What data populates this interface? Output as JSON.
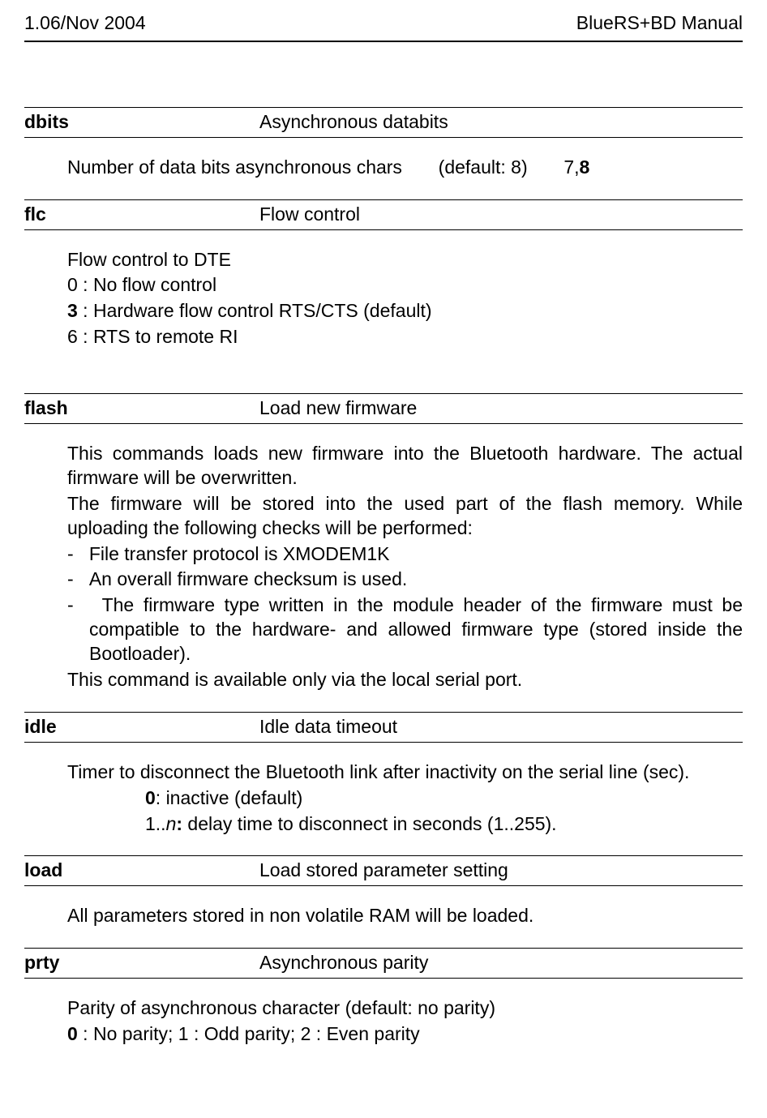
{
  "header": {
    "left": "1.06/Nov 2004",
    "right": "BlueRS+BD Manual"
  },
  "sections": {
    "dbits": {
      "key": "dbits",
      "desc": "Asynchronous databits",
      "line1_a": "Number of data bits asynchronous chars",
      "line1_b": "(default: 8)",
      "line1_c": "7,",
      "line1_d": "8"
    },
    "flc": {
      "key": "flc",
      "desc": "Flow control",
      "l1": "Flow control to DTE",
      "l2": "0 : No flow control",
      "l3a": "3",
      "l3b": " : Hardware flow control RTS/CTS (default)",
      "l4": "6 : RTS to remote RI"
    },
    "flash": {
      "key": "flash",
      "desc": "Load new firmware",
      "p1": "This commands loads new firmware into the Bluetooth hardware. The actual firmware will be overwritten.",
      "p2": "The firmware will be stored into the used part of the flash memory. While uploading the following checks will be performed:",
      "b1": "-   File transfer protocol is XMODEM1K",
      "b2": "-   An overall firmware checksum is used.",
      "b3": "-   The firmware type written in the module header of the firmware must be compatible to the hardware- and allowed firmware type (stored inside the Bootloader).",
      "p3": "This command is available only via the local serial port."
    },
    "idle": {
      "key": "idle",
      "desc": "Idle data timeout",
      "p1": "Timer to disconnect the Bluetooth link after inactivity on the serial line (sec).",
      "i1a": "0",
      "i1b": ": inactive (default)",
      "i2a": "1..",
      "i2b": "n",
      "i2c": ":",
      "i2d": " delay time to disconnect in seconds (1..255)."
    },
    "load": {
      "key": "load",
      "desc": "Load stored parameter setting",
      "p1": "All parameters stored in non volatile RAM will be loaded."
    },
    "prty": {
      "key": "prty",
      "desc": "Asynchronous parity",
      "p1": "Parity of asynchronous character (default: no parity)",
      "p2a": "0",
      "p2b": " : No parity; 1 : Odd parity; 2 : Even parity"
    }
  }
}
